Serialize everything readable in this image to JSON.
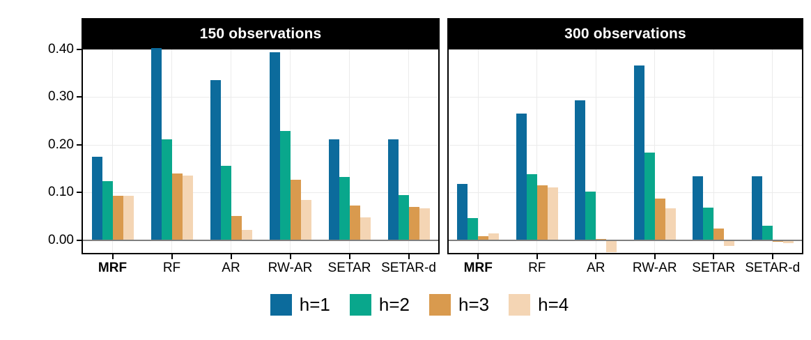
{
  "chart_data": {
    "type": "bar",
    "layout": "two-facet grouped bar chart, shared y axis, legend at bottom",
    "categories": [
      "MRF",
      "RF",
      "AR",
      "RW-AR",
      "SETAR",
      "SETAR-d"
    ],
    "bold_category": "MRF",
    "series_names": [
      "h=1",
      "h=2",
      "h=3",
      "h=4"
    ],
    "palette": {
      "h=1": "#0c6b9c",
      "h=2": "#09a78c",
      "h=3": "#d99a4e",
      "h=4": "#f4d5b4"
    },
    "facets": [
      {
        "title": "150 observations",
        "series": [
          {
            "name": "h=1",
            "values": [
              0.175,
              0.403,
              0.335,
              0.394,
              0.211,
              0.211
            ]
          },
          {
            "name": "h=2",
            "values": [
              0.124,
              0.212,
              0.156,
              0.229,
              0.133,
              0.095
            ]
          },
          {
            "name": "h=3",
            "values": [
              0.093,
              0.139,
              0.05,
              0.126,
              0.072,
              0.069
            ]
          },
          {
            "name": "h=4",
            "values": [
              0.093,
              0.135,
              0.021,
              0.084,
              0.047,
              0.066
            ]
          }
        ]
      },
      {
        "title": "300 observations",
        "series": [
          {
            "name": "h=1",
            "values": [
              0.118,
              0.265,
              0.293,
              0.367,
              0.134,
              0.134
            ]
          },
          {
            "name": "h=2",
            "values": [
              0.046,
              0.138,
              0.101,
              0.184,
              0.068,
              0.03
            ]
          },
          {
            "name": "h=3",
            "values": [
              0.008,
              0.115,
              0.002,
              0.087,
              0.024,
              -0.004
            ]
          },
          {
            "name": "h=4",
            "values": [
              0.014,
              0.111,
              -0.025,
              0.066,
              -0.013,
              -0.007
            ]
          }
        ]
      }
    ],
    "ylim": [
      -0.027,
      0.4
    ],
    "y_ticks": [
      {
        "value": 0.0,
        "label": "0.00"
      },
      {
        "value": 0.1,
        "label": "0.10"
      },
      {
        "value": 0.2,
        "label": "0.20"
      },
      {
        "value": 0.3,
        "label": "0.30"
      },
      {
        "value": 0.4,
        "label": "0.40"
      }
    ],
    "gridlines": {
      "horizontal_major": [
        0.1,
        0.2,
        0.3
      ],
      "vertical_at_category_centers": true,
      "zero_line": true
    },
    "strip_style": {
      "background": "#000000",
      "text_color": "#ffffff"
    },
    "grid_color": "#ebebeb",
    "zero_line_color": "#7f7f7f",
    "note": "RF h=1 bar in the 150-observations facet is clipped at the 0.40 axis limit"
  },
  "legend": {
    "items": [
      {
        "label": "h=1",
        "color": "#0c6b9c"
      },
      {
        "label": "h=2",
        "color": "#09a78c"
      },
      {
        "label": "h=3",
        "color": "#d99a4e"
      },
      {
        "label": "h=4",
        "color": "#f4d5b4"
      }
    ]
  }
}
